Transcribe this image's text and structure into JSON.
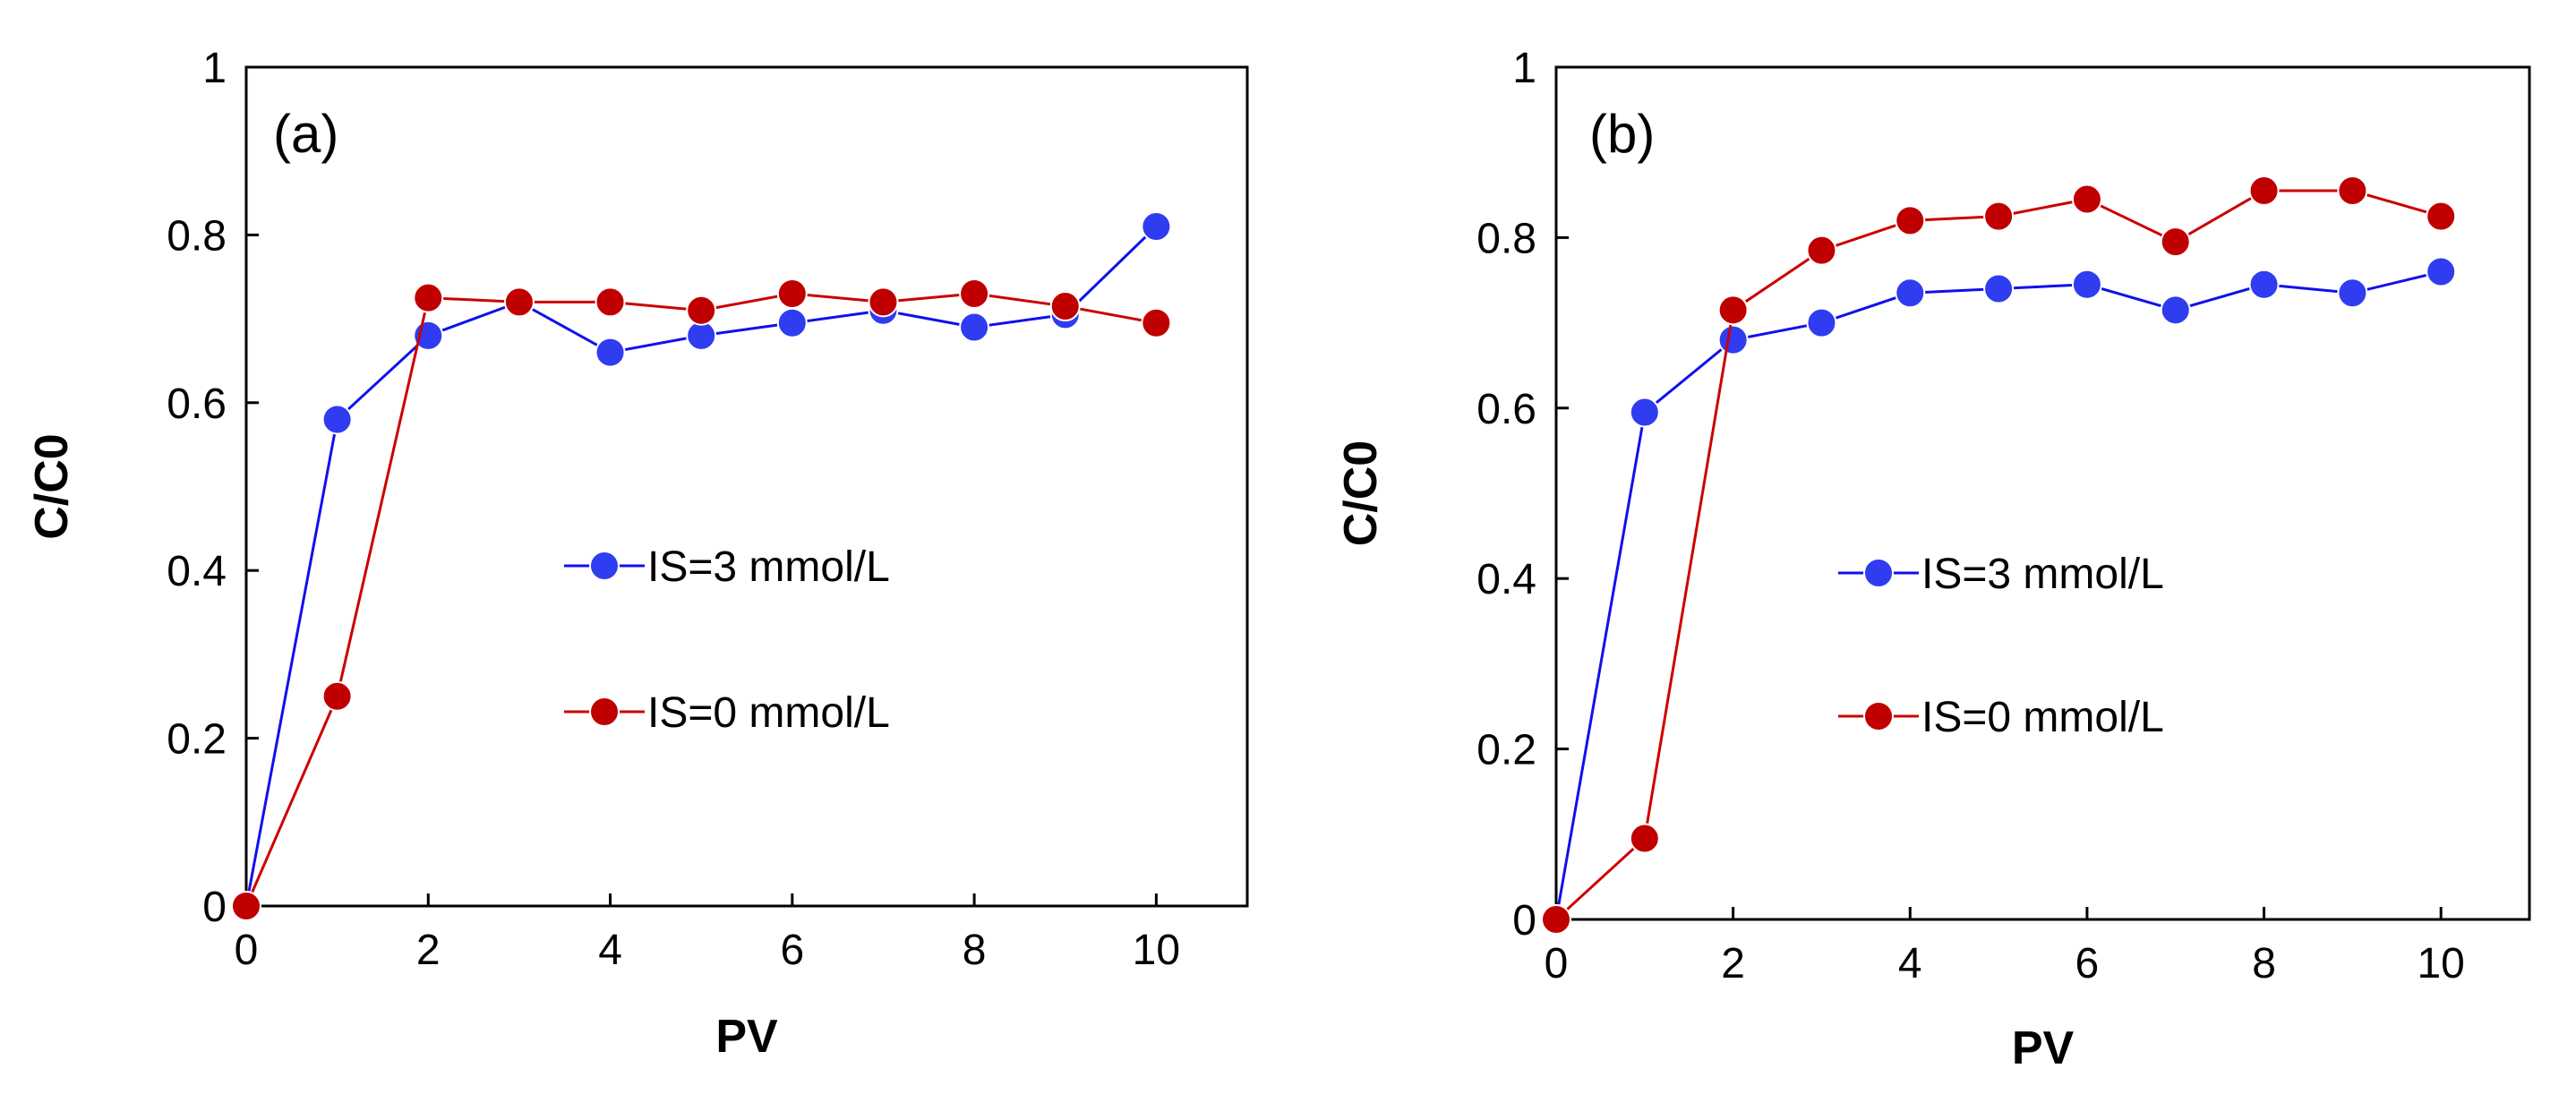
{
  "chart_data": [
    {
      "type": "line",
      "panel_label": "(a)",
      "xlabel": "PV",
      "ylabel": "C/C0",
      "xlim": [
        0,
        11
      ],
      "ylim": [
        0,
        1
      ],
      "xticks": [
        0,
        2,
        4,
        6,
        8,
        10
      ],
      "yticks": [
        0,
        0.2,
        0.4,
        0.6,
        0.8,
        1
      ],
      "xtick_labels": [
        "0",
        "2",
        "4",
        "6",
        "8",
        "10"
      ],
      "ytick_labels": [
        "0",
        "0.2",
        "0.4",
        "0.6",
        "0.8",
        "1"
      ],
      "grid": false,
      "legend_position": "center-right",
      "x": [
        0,
        1,
        2,
        3,
        4,
        5,
        6,
        7,
        8,
        9,
        10
      ],
      "series": [
        {
          "name": "IS=3 mmol/L",
          "line_color": "#1010ee",
          "marker_color": "#2f3cf0",
          "values": [
            0,
            0.58,
            0.68,
            0.72,
            0.66,
            0.68,
            0.695,
            0.71,
            0.69,
            0.705,
            0.81
          ]
        },
        {
          "name": "IS=0 mmol/L",
          "line_color": "#cc0000",
          "marker_color": "#c00000",
          "values": [
            0,
            0.25,
            0.725,
            0.72,
            0.72,
            0.71,
            0.73,
            0.72,
            0.73,
            0.715,
            0.695
          ]
        }
      ]
    },
    {
      "type": "line",
      "panel_label": "(b)",
      "xlabel": "PV",
      "ylabel": "C/C0",
      "xlim": [
        0,
        11
      ],
      "ylim": [
        0,
        1
      ],
      "xticks": [
        0,
        2,
        4,
        6,
        8,
        10
      ],
      "yticks": [
        0,
        0.2,
        0.4,
        0.6,
        0.8,
        1
      ],
      "xtick_labels": [
        "0",
        "2",
        "4",
        "6",
        "8",
        "10"
      ],
      "ytick_labels": [
        "0",
        "0.2",
        "0.4",
        "0.6",
        "0.8",
        "1"
      ],
      "grid": false,
      "legend_position": "center-right",
      "x": [
        0,
        1,
        2,
        3,
        4,
        5,
        6,
        7,
        8,
        9,
        10
      ],
      "series": [
        {
          "name": "IS=3 mmol/L",
          "line_color": "#1010ee",
          "marker_color": "#2f3cf0",
          "values": [
            0,
            0.595,
            0.68,
            0.7,
            0.735,
            0.74,
            0.745,
            0.715,
            0.745,
            0.735,
            0.76
          ]
        },
        {
          "name": "IS=0 mmol/L",
          "line_color": "#cc0000",
          "marker_color": "#c00000",
          "values": [
            0,
            0.095,
            0.715,
            0.785,
            0.82,
            0.825,
            0.845,
            0.795,
            0.855,
            0.855,
            0.825
          ]
        }
      ]
    }
  ]
}
